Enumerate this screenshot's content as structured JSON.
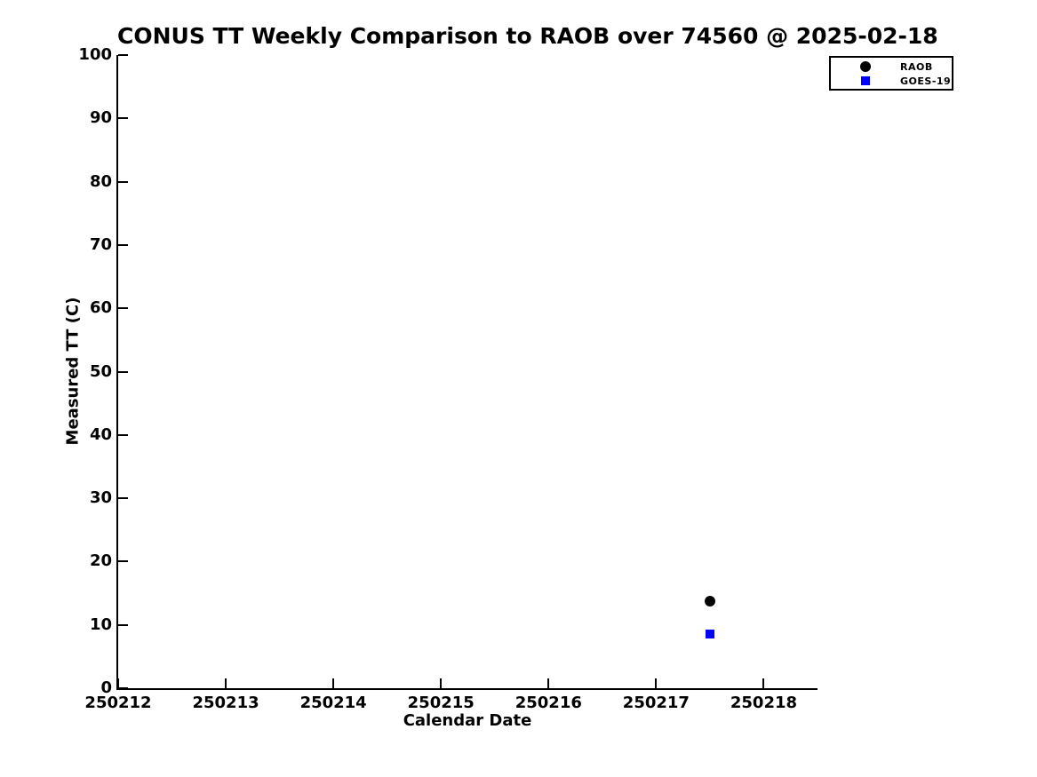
{
  "chart_data": {
    "type": "scatter",
    "title": "CONUS TT Weekly Comparison to RAOB over 74560 @ 2025-02-18",
    "xlabel": "Calendar Date",
    "ylabel": "Measured TT (C)",
    "xlim": [
      250212,
      250218.5
    ],
    "ylim": [
      0,
      100
    ],
    "x_ticks": [
      250212,
      250213,
      250214,
      250215,
      250216,
      250217,
      250218
    ],
    "x_tick_labels": [
      "250212",
      "250213",
      "250214",
      "250215",
      "250216",
      "250217",
      "250218"
    ],
    "y_ticks": [
      0,
      10,
      20,
      30,
      40,
      50,
      60,
      70,
      80,
      90,
      100
    ],
    "y_tick_labels": [
      "0",
      "10",
      "20",
      "30",
      "40",
      "50",
      "60",
      "70",
      "80",
      "90",
      "100"
    ],
    "grid": false,
    "legend_position": "outside-top-right",
    "series": [
      {
        "name": "RAOB",
        "marker": "circle",
        "color": "#000000",
        "points": [
          {
            "x": 250217.5,
            "y": 13.7
          }
        ]
      },
      {
        "name": "GOES-19",
        "marker": "square",
        "color": "#0000ff",
        "points": [
          {
            "x": 250217.5,
            "y": 8.5
          }
        ]
      }
    ]
  },
  "colors": {
    "background": "#ffffff",
    "axis": "#000000",
    "raob_marker": "#000000",
    "goes19_marker": "#0000ff"
  }
}
